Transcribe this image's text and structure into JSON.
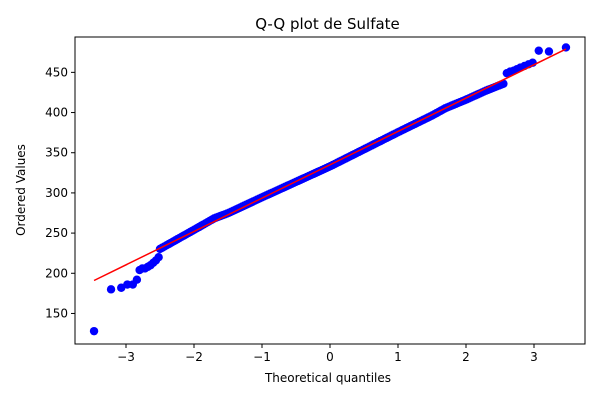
{
  "chart_data": {
    "type": "scatter",
    "title": "Q-Q plot de Sulfate",
    "xlabel": "Theoretical quantiles",
    "ylabel": "Ordered Values",
    "xlim": [
      -3.75,
      3.75
    ],
    "ylim": [
      112,
      494
    ],
    "xticks": [
      -3,
      -2,
      -1,
      0,
      1,
      2,
      3
    ],
    "yticks": [
      150,
      200,
      250,
      300,
      350,
      400,
      450
    ],
    "grid": false,
    "legend": "none",
    "colors": {
      "points": "#0000ff",
      "fit_line": "#ff0000",
      "axes": "#000000"
    },
    "fit_line": {
      "x": [
        -3.47,
        3.47
      ],
      "y": [
        191,
        479
      ]
    },
    "tail_points": {
      "x": [
        -3.47,
        -3.22,
        -3.07,
        -2.98,
        -2.9,
        -2.84,
        -2.8,
        -2.76,
        -2.72,
        -2.68,
        -2.64,
        -2.6,
        -2.56,
        -2.52,
        2.6,
        2.65,
        2.7,
        2.75,
        2.8,
        2.86,
        2.92,
        2.98,
        3.07,
        3.22,
        3.47
      ],
      "y": [
        128,
        180,
        182,
        186,
        186,
        192,
        204,
        206,
        206,
        208,
        210,
        213,
        216,
        220,
        449,
        451,
        452,
        454,
        456,
        458,
        460,
        462,
        477,
        476,
        481
      ]
    },
    "body_points": {
      "x_range": [
        -2.5,
        2.55
      ],
      "count": 160,
      "offsets": [
        [
          -2.5,
          -1
        ],
        [
          -2.0,
          2
        ],
        [
          -1.7,
          4
        ],
        [
          -1.5,
          2
        ],
        [
          -1.0,
          1
        ],
        [
          0.0,
          -2
        ],
        [
          1.0,
          -1
        ],
        [
          1.5,
          -1
        ],
        [
          1.7,
          0
        ],
        [
          2.0,
          -2
        ],
        [
          2.3,
          -3
        ],
        [
          2.55,
          -5
        ]
      ]
    }
  }
}
